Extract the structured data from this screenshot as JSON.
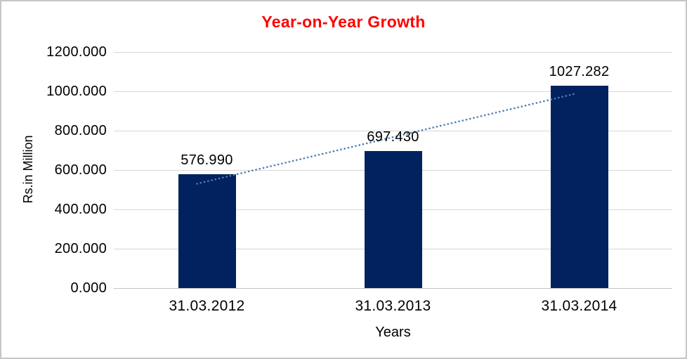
{
  "chart_data": {
    "type": "bar",
    "title": "Year-on-Year Growth",
    "title_color": "#FF0000",
    "xlabel": "Years",
    "ylabel": "Rs.in Million",
    "categories": [
      "31.03.2012",
      "31.03.2013",
      "31.03.2014"
    ],
    "values": [
      576.99,
      697.43,
      1027.282
    ],
    "value_labels": [
      "576.990",
      "697.430",
      "1027.282"
    ],
    "ylim": [
      0,
      1200
    ],
    "ytick_labels": [
      "0.000",
      "200.000",
      "400.000",
      "600.000",
      "800.000",
      "1000.000",
      "1200.000"
    ],
    "grid": true,
    "legend": "none",
    "bar_color": "#01225E",
    "gridline_color": "#D7D7D7",
    "axis_line_color": "#C2C2C2",
    "trendline": {
      "type": "linear",
      "style": "dotted",
      "color": "#4A7EBB"
    }
  }
}
